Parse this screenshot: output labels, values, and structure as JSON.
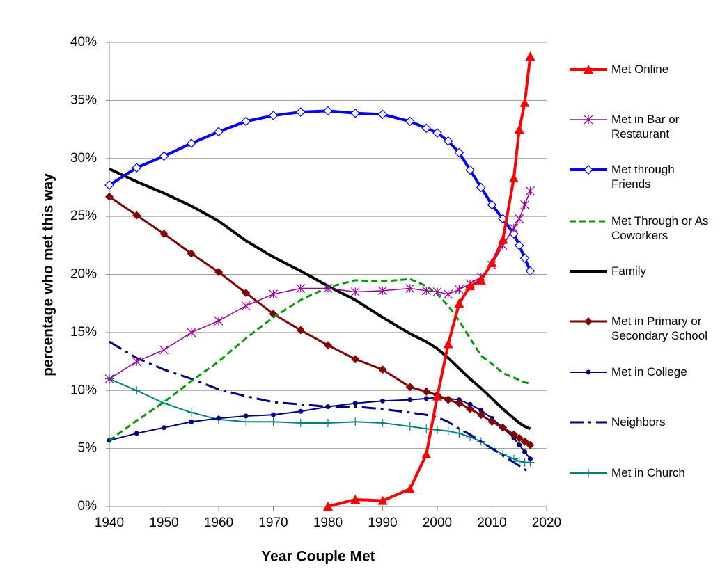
{
  "chart_data": {
    "type": "line",
    "xlabel": "Year Couple Met",
    "ylabel": "percentage who met this way",
    "x": [
      1940,
      1945,
      1950,
      1955,
      1960,
      1965,
      1970,
      1975,
      1980,
      1985,
      1990,
      1995,
      1998,
      2000,
      2002,
      2004,
      2006,
      2008,
      2010,
      2012,
      2014,
      2015,
      2016,
      2017
    ],
    "xlim": [
      1940,
      2020
    ],
    "xticks": [
      1940,
      1950,
      1960,
      1970,
      1980,
      1990,
      2000,
      2010,
      2020
    ],
    "ylim": [
      0,
      40
    ],
    "yticks": [
      {
        "value": 0,
        "label": "0%"
      },
      {
        "value": 5,
        "label": "5%"
      },
      {
        "value": 10,
        "label": "10%"
      },
      {
        "value": 15,
        "label": "15%"
      },
      {
        "value": 20,
        "label": "20%"
      },
      {
        "value": 25,
        "label": "25%"
      },
      {
        "value": 30,
        "label": "30%"
      },
      {
        "value": 35,
        "label": "35%"
      },
      {
        "value": 40,
        "label": "40%"
      }
    ],
    "grid": true,
    "legend": "right",
    "series": [
      {
        "name": "Met Online",
        "color": "#ff0000",
        "marker": "triangle",
        "dash": "solid",
        "line_width": 4,
        "values": [
          null,
          null,
          null,
          null,
          null,
          null,
          null,
          null,
          0,
          0.6,
          0.5,
          1.5,
          4.5,
          9.5,
          14,
          17.5,
          19,
          19.5,
          21,
          23,
          28.3,
          32.5,
          34.8,
          38.8
        ]
      },
      {
        "name": "Met in Bar or Restaurant",
        "color": "#990099",
        "marker": "asterisk",
        "dash": "solid",
        "line_width": 1.5,
        "values": [
          11,
          12.5,
          13.5,
          15,
          16,
          17.3,
          18.3,
          18.8,
          18.8,
          18.5,
          18.6,
          18.8,
          18.6,
          18.5,
          18.3,
          18.7,
          19.2,
          19.8,
          20.8,
          22.5,
          24,
          24.8,
          26,
          27.2
        ]
      },
      {
        "name": "Met through Friends",
        "color": "#0000ff",
        "marker": "diamond-open",
        "dash": "solid",
        "line_width": 4,
        "values": [
          27.7,
          29.2,
          30.2,
          31.3,
          32.3,
          33.2,
          33.7,
          34,
          34.1,
          33.9,
          33.8,
          33.2,
          32.6,
          32.2,
          31.5,
          30.5,
          29,
          27.5,
          26,
          24.8,
          23.5,
          22.5,
          21.4,
          20.3
        ]
      },
      {
        "name": "Met Through or As Coworkers",
        "color": "#009900",
        "marker": "none",
        "dash": "dashed",
        "line_width": 3,
        "values": [
          5.7,
          7.4,
          9,
          10.8,
          12.5,
          14.5,
          16.3,
          17.8,
          18.9,
          19.5,
          19.4,
          19.6,
          19,
          18.3,
          17.3,
          16,
          14.5,
          13,
          12.3,
          11.5,
          11.1,
          10.9,
          10.7,
          10.6
        ]
      },
      {
        "name": "Family",
        "color": "#000000",
        "marker": "none",
        "dash": "solid",
        "line_width": 4,
        "values": [
          29.1,
          28,
          27,
          25.9,
          24.6,
          22.9,
          21.5,
          20.3,
          19,
          17.8,
          16.3,
          14.9,
          14.2,
          13.6,
          12.8,
          11.9,
          11,
          10.2,
          9.3,
          8.4,
          7.6,
          7.2,
          6.9,
          6.7
        ]
      },
      {
        "name": "Met in Primary or Secondary School",
        "color": "#800000",
        "marker": "diamond",
        "dash": "solid",
        "line_width": 3,
        "values": [
          26.7,
          25.1,
          23.5,
          21.8,
          20.2,
          18.4,
          16.6,
          15.2,
          13.9,
          12.7,
          11.8,
          10.3,
          9.9,
          9.6,
          9.2,
          8.9,
          8.4,
          7.9,
          7.3,
          6.8,
          6.2,
          5.9,
          5.6,
          5.3
        ]
      },
      {
        "name": "Met in College",
        "color": "#000080",
        "marker": "circle",
        "dash": "solid",
        "line_width": 2,
        "values": [
          5.7,
          6.3,
          6.8,
          7.3,
          7.6,
          7.8,
          7.9,
          8.2,
          8.6,
          8.9,
          9.1,
          9.2,
          9.3,
          9.4,
          9.3,
          9.2,
          8.8,
          8.3,
          7.6,
          6.8,
          5.9,
          5.3,
          4.7,
          4.1
        ]
      },
      {
        "name": "Neighbors",
        "color": "#000080",
        "marker": "none",
        "dash": "dashdot",
        "line_width": 3,
        "values": [
          14.2,
          12.8,
          11.8,
          11,
          10.1,
          9.5,
          9,
          8.8,
          8.6,
          8.6,
          8.4,
          8.1,
          7.9,
          7.7,
          7.3,
          6.7,
          6.2,
          5.6,
          5,
          4.4,
          3.8,
          3.5,
          3.2,
          2.9
        ]
      },
      {
        "name": "Met in Church",
        "color": "#008080",
        "marker": "plus",
        "dash": "solid",
        "line_width": 2,
        "values": [
          11,
          10,
          8.9,
          8.1,
          7.5,
          7.3,
          7.3,
          7.2,
          7.2,
          7.3,
          7.2,
          6.9,
          6.7,
          6.6,
          6.5,
          6.3,
          6,
          5.6,
          5,
          4.5,
          4.1,
          3.9,
          3.8,
          3.8
        ]
      }
    ]
  }
}
